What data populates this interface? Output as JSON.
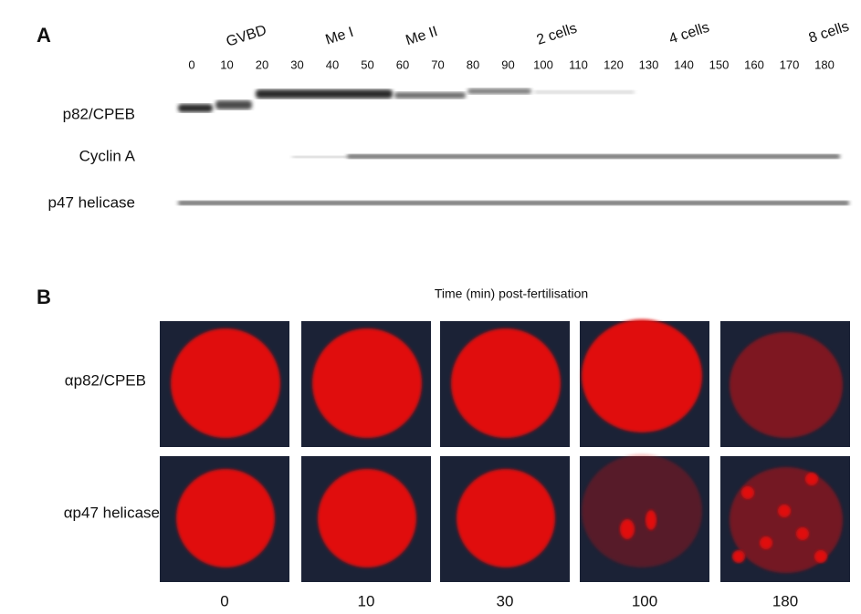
{
  "panel_a": {
    "label": "A",
    "stages": [
      "GVBD",
      "Me I",
      "Me II",
      "2 cells",
      "4 cells",
      "8 cells"
    ],
    "times": [
      0,
      10,
      20,
      30,
      40,
      50,
      60,
      70,
      80,
      90,
      100,
      110,
      120,
      130,
      140,
      150,
      160,
      170,
      180
    ],
    "rows": [
      "p82/CPEB",
      "Cyclin A",
      "p47 helicase"
    ]
  },
  "panel_b": {
    "label": "B",
    "title": "Time (min) post-fertilisation",
    "rows": [
      "αp82/CPEB",
      "αp47 helicase"
    ],
    "columns": [
      0,
      10,
      30,
      100,
      180
    ]
  }
}
